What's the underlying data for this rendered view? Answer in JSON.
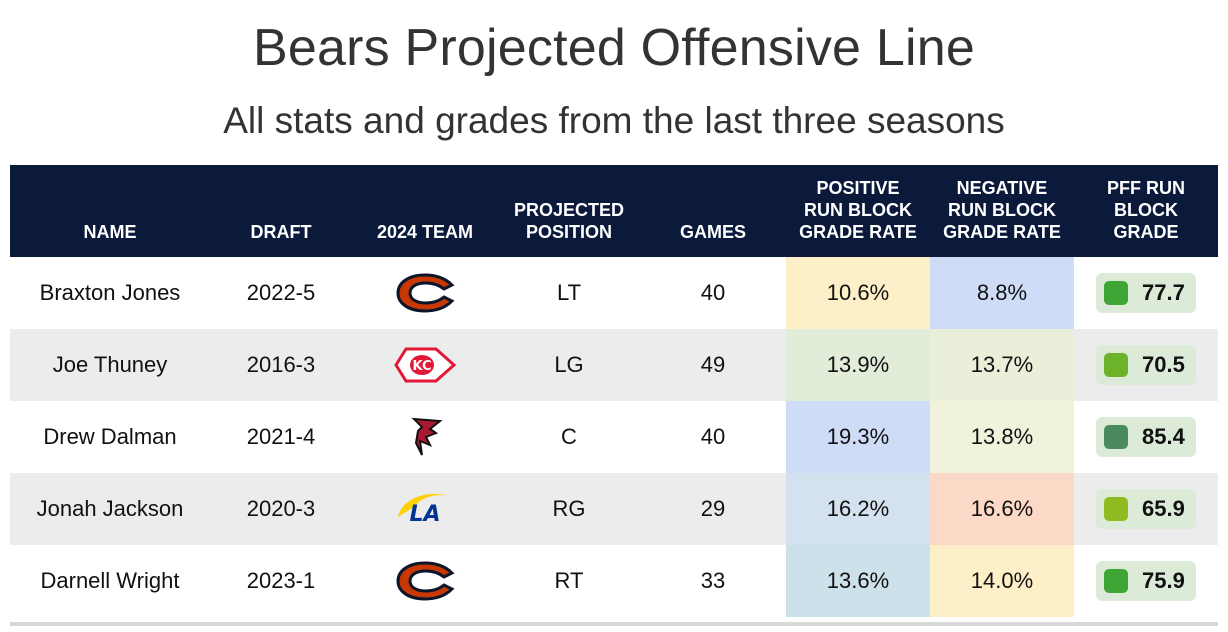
{
  "title": "Bears Projected Offensive Line",
  "subtitle": "All stats and grades from the last three seasons",
  "columns": {
    "name": "NAME",
    "draft": "DRAFT",
    "team": "2024 TEAM",
    "position": "PROJECTED\nPOSITION",
    "games": "GAMES",
    "positive": "POSITIVE\nRUN BLOCK\nGRADE RATE",
    "negative": "NEGATIVE\nRUN BLOCK\nGRADE RATE",
    "pff": "PFF RUN\nBLOCK\nGRADE"
  },
  "rows": [
    {
      "name": "Braxton Jones",
      "draft": "2022-5",
      "team_logo": "chicago-bears-logo-icon",
      "position": "LT",
      "games": "40",
      "positive": "10.6%",
      "positive_color": "#fdf0c8",
      "negative": "8.8%",
      "negative_color": "#cfdcf7",
      "pff": "77.7",
      "pff_color": "#3fa535"
    },
    {
      "name": "Joe Thuney",
      "draft": "2016-3",
      "team_logo": "kansas-city-chiefs-logo-icon",
      "position": "LG",
      "games": "49",
      "positive": "13.9%",
      "positive_color": "#e1ecd9",
      "negative": "13.7%",
      "negative_color": "#e9efd8",
      "pff": "70.5",
      "pff_color": "#6db329"
    },
    {
      "name": "Drew Dalman",
      "draft": "2021-4",
      "team_logo": "atlanta-falcons-logo-icon",
      "position": "C",
      "games": "40",
      "positive": "19.3%",
      "positive_color": "#cfdcf7",
      "negative": "13.8%",
      "negative_color": "#f1f2dc",
      "pff": "85.4",
      "pff_color": "#4a8a5e"
    },
    {
      "name": "Jonah Jackson",
      "draft": "2020-3",
      "team_logo": "los-angeles-rams-logo-icon",
      "position": "RG",
      "games": "29",
      "positive": "16.2%",
      "positive_color": "#d4e2f0",
      "negative": "16.6%",
      "negative_color": "#fcd9c7",
      "pff": "65.9",
      "pff_color": "#8fbb21"
    },
    {
      "name": "Darnell Wright",
      "draft": "2023-1",
      "team_logo": "chicago-bears-logo-icon",
      "position": "RT",
      "games": "33",
      "positive": "13.6%",
      "positive_color": "#cde1ea",
      "negative": "14.0%",
      "negative_color": "#fdf0c8",
      "pff": "75.9",
      "pff_color": "#3fa535"
    }
  ],
  "colors": {
    "header_bg": "#0b1a3b",
    "alt_row": "#ececec",
    "grade_pill": "#dcebd8"
  }
}
